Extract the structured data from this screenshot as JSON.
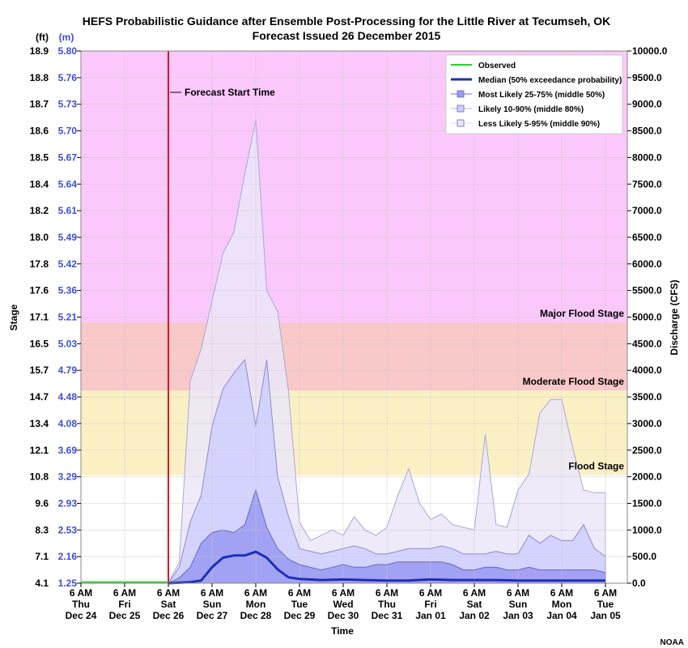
{
  "chart_data": {
    "type": "area",
    "title": "HEFS Probabilistic Guidance after Ensemble Post-Processing for the Little River at Tecumseh, OK",
    "subtitle": "Forecast Issued 26 December 2015",
    "xlabel": "Time",
    "ylabel_left": "Stage",
    "ylabel_right": "Discharge (CFS)",
    "unit_ft": "(ft)",
    "unit_m": "(m)",
    "credit": "NOAA",
    "ylim": [
      0,
      10000
    ],
    "x_unit": "days since 6 AM Thu Dec 24",
    "x_range": [
      0,
      12.5
    ],
    "right_ticks": [
      "0.0",
      "500.0",
      "1000.0",
      "1500.0",
      "2000.0",
      "2500.0",
      "3000.0",
      "3500.0",
      "4000.0",
      "4500.0",
      "5000.0",
      "5500.0",
      "6000.0",
      "6500.0",
      "7000.0",
      "7500.0",
      "8000.0",
      "8500.0",
      "9000.0",
      "9500.0",
      "10000.0"
    ],
    "stage_ft_ticks": [
      "4.1",
      "7.1",
      "8.3",
      "9.6",
      "10.8",
      "12.1",
      "13.4",
      "14.7",
      "15.7",
      "16.5",
      "17.1",
      "17.6",
      "17.8",
      "18.0",
      "18.2",
      "18.4",
      "18.5",
      "18.6",
      "18.7",
      "18.8",
      "18.9"
    ],
    "stage_m_ticks": [
      "1.25",
      "2.16",
      "2.53",
      "2.93",
      "3.29",
      "3.69",
      "4.08",
      "4.48",
      "4.79",
      "5.03",
      "5.21",
      "5.36",
      "5.42",
      "5.49",
      "5.61",
      "5.64",
      "5.67",
      "5.70",
      "5.73",
      "5.76",
      "5.80"
    ],
    "x_ticks": [
      {
        "x": 0,
        "l1": "6 AM",
        "l2": "Thu",
        "l3": "Dec 24"
      },
      {
        "x": 1,
        "l1": "6 AM",
        "l2": "Fri",
        "l3": "Dec 25"
      },
      {
        "x": 2,
        "l1": "6 AM",
        "l2": "Sat",
        "l3": "Dec 26"
      },
      {
        "x": 3,
        "l1": "6 AM",
        "l2": "Sun",
        "l3": "Dec 27"
      },
      {
        "x": 4,
        "l1": "6 AM",
        "l2": "Mon",
        "l3": "Dec 28"
      },
      {
        "x": 5,
        "l1": "6 AM",
        "l2": "Tue",
        "l3": "Dec 29"
      },
      {
        "x": 6,
        "l1": "6 AM",
        "l2": "Wed",
        "l3": "Dec 30"
      },
      {
        "x": 7,
        "l1": "6 AM",
        "l2": "Thu",
        "l3": "Dec 31"
      },
      {
        "x": 8,
        "l1": "6 AM",
        "l2": "Fri",
        "l3": "Jan 01"
      },
      {
        "x": 9,
        "l1": "6 AM",
        "l2": "Sat",
        "l3": "Jan 02"
      },
      {
        "x": 10,
        "l1": "6 AM",
        "l2": "Sun",
        "l3": "Jan 03"
      },
      {
        "x": 11,
        "l1": "6 AM",
        "l2": "Mon",
        "l3": "Jan 04"
      },
      {
        "x": 12,
        "l1": "6 AM",
        "l2": "Tue",
        "l3": "Jan 05"
      }
    ],
    "flood_stages": [
      {
        "name": "Flood Stage",
        "label": "Flood Stage",
        "from": 2030,
        "to": 3620,
        "color": "#fbf0c4"
      },
      {
        "name": "Moderate Flood Stage",
        "label": "Moderate Flood Stage",
        "from": 3620,
        "to": 4900,
        "color": "#f9c8c8"
      },
      {
        "name": "Major Flood Stage",
        "label": "Major Flood Stage",
        "from": 4900,
        "to": 10000,
        "color": "#fbc8fb"
      }
    ],
    "forecast_start": {
      "x": 2,
      "label": "Forecast Start Time",
      "color": "#e0141e"
    },
    "band_x": [
      2,
      2.25,
      2.5,
      2.75,
      3,
      3.25,
      3.5,
      3.75,
      4,
      4.25,
      4.5,
      4.75,
      5,
      5.25,
      5.5,
      5.75,
      6,
      6.25,
      6.5,
      6.75,
      7,
      7.25,
      7.5,
      7.75,
      8,
      8.25,
      8.5,
      8.75,
      9,
      9.25,
      9.5,
      9.75,
      10,
      10.25,
      10.5,
      10.75,
      11,
      11.25,
      11.5,
      11.75,
      12
    ],
    "series": [
      {
        "name": "Less Likely 5-95% (middle 90%)",
        "color": "#ebe6f9",
        "stroke": "#a8a8d6",
        "lower": [
          0,
          0,
          0,
          0,
          0,
          0,
          0,
          0,
          0,
          0,
          0,
          0,
          0,
          0,
          0,
          0,
          0,
          0,
          0,
          0,
          0,
          0,
          0,
          0,
          0,
          0,
          0,
          0,
          0,
          0,
          0,
          0,
          0,
          0,
          0,
          0,
          0,
          0,
          0,
          0,
          0
        ],
        "upper": [
          0,
          400,
          3800,
          4400,
          5300,
          6200,
          6600,
          7700,
          8700,
          5500,
          5100,
          3600,
          1150,
          800,
          900,
          1000,
          900,
          1250,
          1000,
          900,
          1050,
          1650,
          2150,
          1500,
          1200,
          1300,
          1100,
          1050,
          1000,
          2800,
          1100,
          1050,
          1750,
          2050,
          3200,
          3450,
          3450,
          2550,
          1750,
          1700,
          1700
        ]
      },
      {
        "name": "Likely 10-90% (middle 80%)",
        "color": "#cfcfff",
        "stroke": "#8a8ad0",
        "lower": [
          0,
          0,
          0,
          0,
          0,
          0,
          0,
          0,
          0,
          0,
          0,
          0,
          0,
          0,
          0,
          0,
          0,
          0,
          0,
          0,
          0,
          0,
          0,
          0,
          0,
          0,
          0,
          0,
          0,
          0,
          0,
          0,
          0,
          0,
          0,
          0,
          0,
          0,
          0,
          0,
          0
        ],
        "upper": [
          0,
          300,
          1150,
          1650,
          2950,
          3650,
          3950,
          4200,
          2950,
          4200,
          2000,
          1250,
          650,
          600,
          550,
          600,
          650,
          700,
          650,
          550,
          550,
          600,
          650,
          650,
          650,
          700,
          650,
          550,
          550,
          550,
          600,
          550,
          550,
          900,
          750,
          900,
          800,
          800,
          1100,
          650,
          500
        ]
      },
      {
        "name": "Most Likely 25-75% (middle 50%)",
        "color": "#9999f2",
        "stroke": "#6666c8",
        "lower": [
          0,
          0,
          0,
          0,
          0,
          0,
          0,
          0,
          0,
          0,
          0,
          0,
          0,
          0,
          0,
          0,
          0,
          0,
          0,
          0,
          0,
          0,
          0,
          0,
          0,
          0,
          0,
          0,
          0,
          0,
          0,
          0,
          0,
          0,
          0,
          0,
          0,
          0,
          0,
          0,
          0
        ],
        "upper": [
          0,
          100,
          300,
          750,
          950,
          1000,
          950,
          1100,
          1750,
          1050,
          650,
          450,
          350,
          300,
          250,
          300,
          350,
          300,
          300,
          350,
          350,
          400,
          400,
          400,
          400,
          400,
          350,
          250,
          250,
          300,
          300,
          250,
          250,
          300,
          250,
          250,
          250,
          250,
          250,
          250,
          200
        ]
      }
    ],
    "median": {
      "name": "Median (50% exceedance probability)",
      "color": "#1c2fb4",
      "x": [
        2,
        2.5,
        2.75,
        3,
        3.25,
        3.5,
        3.75,
        4,
        4.25,
        4.5,
        4.75,
        5,
        5.5,
        6,
        6.5,
        7,
        7.5,
        8,
        8.5,
        9,
        9.5,
        10,
        10.5,
        11,
        11.5,
        12
      ],
      "y": [
        0,
        20,
        50,
        300,
        480,
        520,
        520,
        590,
        480,
        260,
        110,
        80,
        60,
        70,
        60,
        50,
        50,
        70,
        60,
        60,
        60,
        50,
        50,
        50,
        50,
        50
      ]
    },
    "observed": {
      "name": "Observed",
      "color": "#1fd91f",
      "x": [
        0,
        2
      ],
      "y": [
        0,
        0
      ]
    },
    "legend": {
      "position": "top-right",
      "items": [
        {
          "label": "Observed",
          "kind": "line",
          "color": "#1fd91f"
        },
        {
          "label": "Median (50% exceedance probability)",
          "kind": "line",
          "color": "#1c2fb4"
        },
        {
          "label": "Most Likely 25-75% (middle 50%)",
          "kind": "box",
          "color": "#9999f2"
        },
        {
          "label": "Likely 10-90% (middle 80%)",
          "kind": "box",
          "color": "#cfcfff"
        },
        {
          "label": "Less Likely 5-95% (middle 90%)",
          "kind": "box",
          "color": "#ebe6f9"
        }
      ]
    },
    "grid": true
  }
}
